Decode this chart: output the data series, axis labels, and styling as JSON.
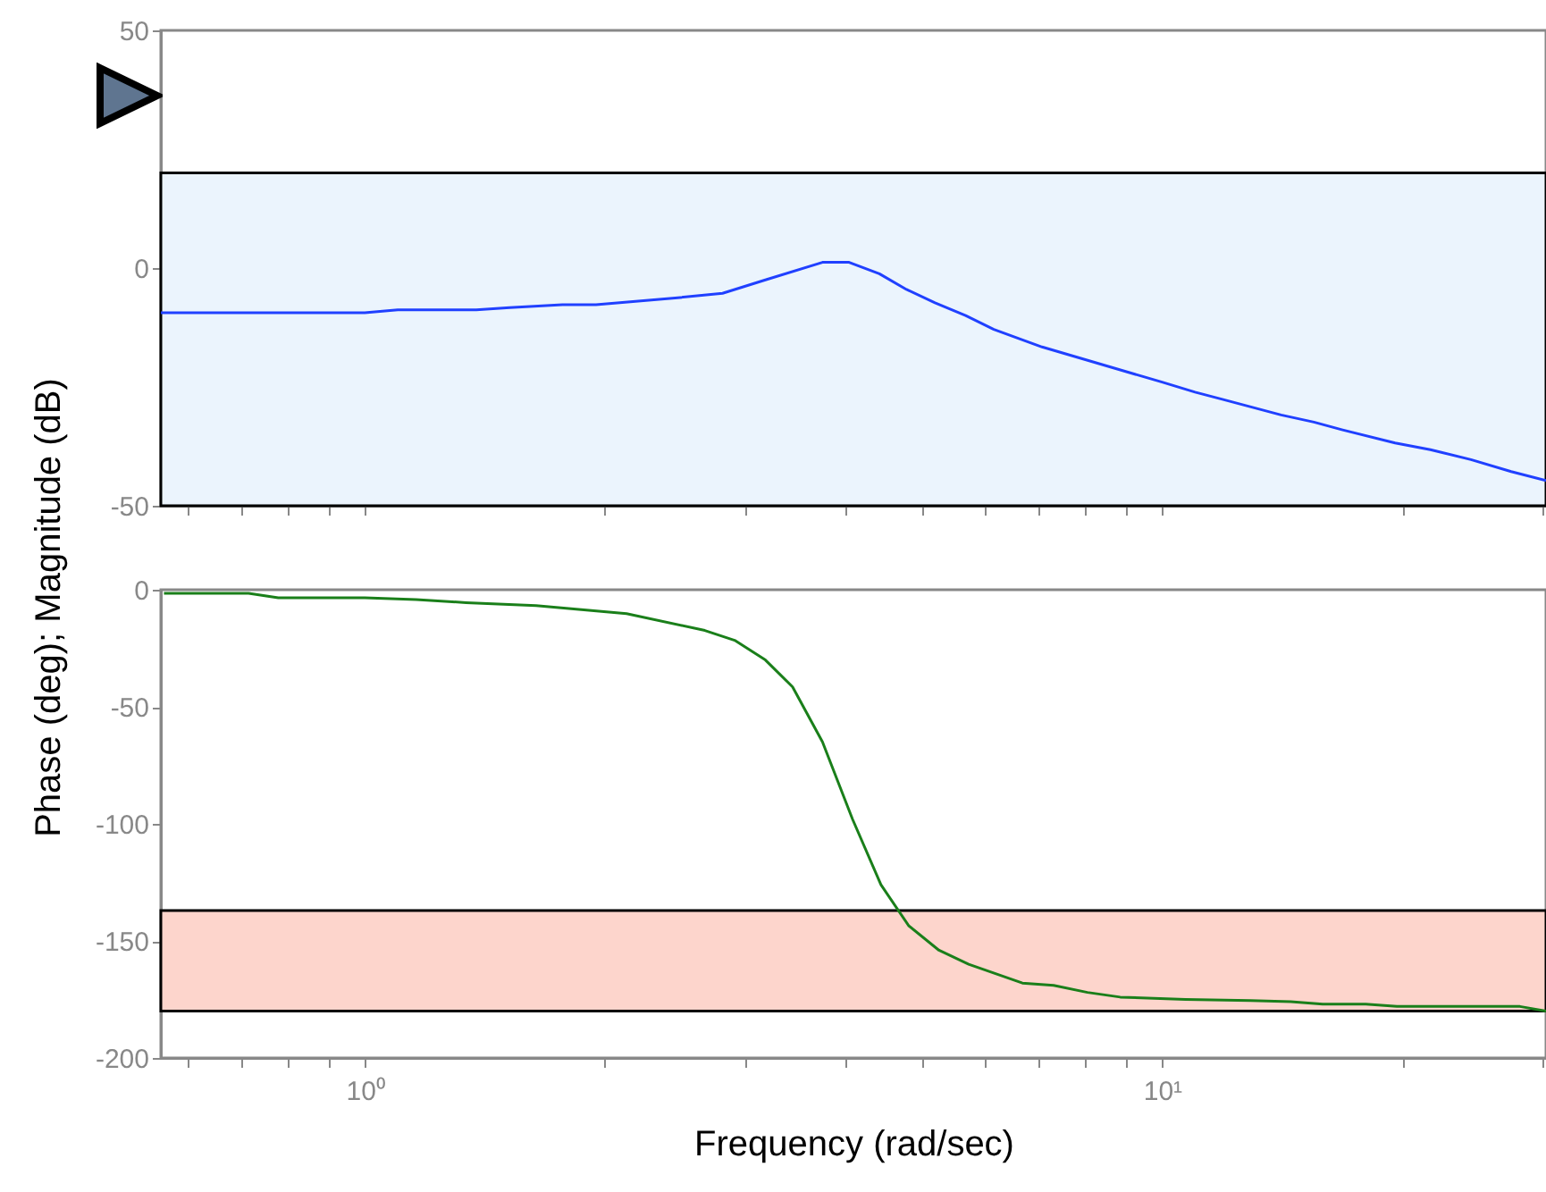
{
  "chart_data": [
    {
      "type": "line",
      "log": "x",
      "xlim": [
        0.555,
        30.3
      ],
      "ylim": [
        -50,
        50
      ],
      "yticks": [
        -50,
        0,
        50
      ],
      "xticks": [
        {
          "value": 0.6,
          "label": null
        },
        {
          "value": 0.7,
          "label": null
        },
        {
          "value": 0.8,
          "label": null
        },
        {
          "value": 0.9,
          "label": null
        },
        {
          "value": 1,
          "label": null
        },
        {
          "value": 2,
          "label": null
        },
        {
          "value": 3,
          "label": null
        },
        {
          "value": 4,
          "label": null
        },
        {
          "value": 5,
          "label": null
        },
        {
          "value": 6,
          "label": null
        },
        {
          "value": 7,
          "label": null
        },
        {
          "value": 8,
          "label": null
        },
        {
          "value": 9,
          "label": null
        },
        {
          "value": 10,
          "label": null
        },
        {
          "value": 20,
          "label": null
        },
        {
          "value": 30,
          "label": null
        }
      ],
      "tick_labels": "y",
      "grid": false,
      "marker": "none",
      "line_style": "solid",
      "bands": [
        {
          "axis": "y",
          "from": -50,
          "to": 20,
          "label": null,
          "color": "#ebf4fd"
        }
      ],
      "series": [
        {
          "color": "#2040ff",
          "x": [
            0.555,
            1.0,
            1.1,
            1.38,
            1.52,
            1.77,
            1.95,
            2.45,
            2.81,
            3.18,
            3.75,
            4.05,
            4.42,
            4.78,
            5.19,
            5.67,
            6.15,
            7.07,
            10,
            11.0,
            11.9,
            14.1,
            15.5,
            16.8,
            19.6,
            21.7,
            24.4,
            27.4,
            30.3
          ],
          "values": [
            -9.4,
            -9.4,
            -8.8,
            -8.8,
            -8.3,
            -7.7,
            -7.7,
            -6.3,
            -5.3,
            -2.5,
            1.2,
            1.2,
            -1.2,
            -4.5,
            -7.3,
            -10,
            -12.9,
            -16.6,
            -24,
            -26.1,
            -27.6,
            -30.9,
            -32.4,
            -34,
            -36.8,
            -38.2,
            -40.3,
            -42.8,
            -44.7
          ]
        }
      ]
    },
    {
      "type": "line",
      "log": "x",
      "xlim": [
        0.555,
        30.3
      ],
      "ylim": [
        -200,
        0
      ],
      "yticks": [
        -200,
        -150,
        -100,
        -50,
        0
      ],
      "xticks": [
        {
          "value": 0.6,
          "label": null
        },
        {
          "value": 0.7,
          "label": null
        },
        {
          "value": 0.8,
          "label": null
        },
        {
          "value": 0.9,
          "label": null
        },
        {
          "value": 1,
          "label": "10⁰"
        },
        {
          "value": 2,
          "label": null
        },
        {
          "value": 3,
          "label": null
        },
        {
          "value": 4,
          "label": null
        },
        {
          "value": 5,
          "label": null
        },
        {
          "value": 6,
          "label": null
        },
        {
          "value": 7,
          "label": null
        },
        {
          "value": 8,
          "label": null
        },
        {
          "value": 9,
          "label": null
        },
        {
          "value": 10,
          "label": "10¹"
        },
        {
          "value": 20,
          "label": null
        },
        {
          "value": 30,
          "label": null
        }
      ],
      "xlabel": "Frequency (rad/sec)",
      "ylabel": "Phase (deg); Magnitude (dB)",
      "grid": false,
      "marker": "none",
      "line_style": "solid",
      "bands": [
        {
          "axis": "y",
          "from": -180,
          "to": -137,
          "label": null,
          "color": "#fdd5cc"
        }
      ],
      "series": [
        {
          "color": "#1a7f1a",
          "x": [
            0.56,
            0.715,
            0.779,
            1.0,
            1.16,
            1.34,
            1.64,
            2.13,
            2.67,
            2.91,
            3.18,
            3.44,
            3.75,
            4.09,
            4.44,
            4.81,
            5.25,
            5.72,
            6.68,
            7.31,
            8.06,
            8.86,
            10.7,
            12.9,
            14.5,
            15.9,
            18.0,
            19.7,
            28.1,
            30.3
          ],
          "values": [
            -1.5,
            -1.5,
            -3.4,
            -3.4,
            -4.2,
            -5.5,
            -6.8,
            -10.2,
            -17.4,
            -21.6,
            -30,
            -41.5,
            -65,
            -98,
            -126,
            -143.5,
            -154,
            -160,
            -168,
            -169,
            -172,
            -174,
            -175,
            -175.5,
            -176,
            -177,
            -177,
            -178,
            -178,
            -180
          ]
        }
      ]
    }
  ]
}
